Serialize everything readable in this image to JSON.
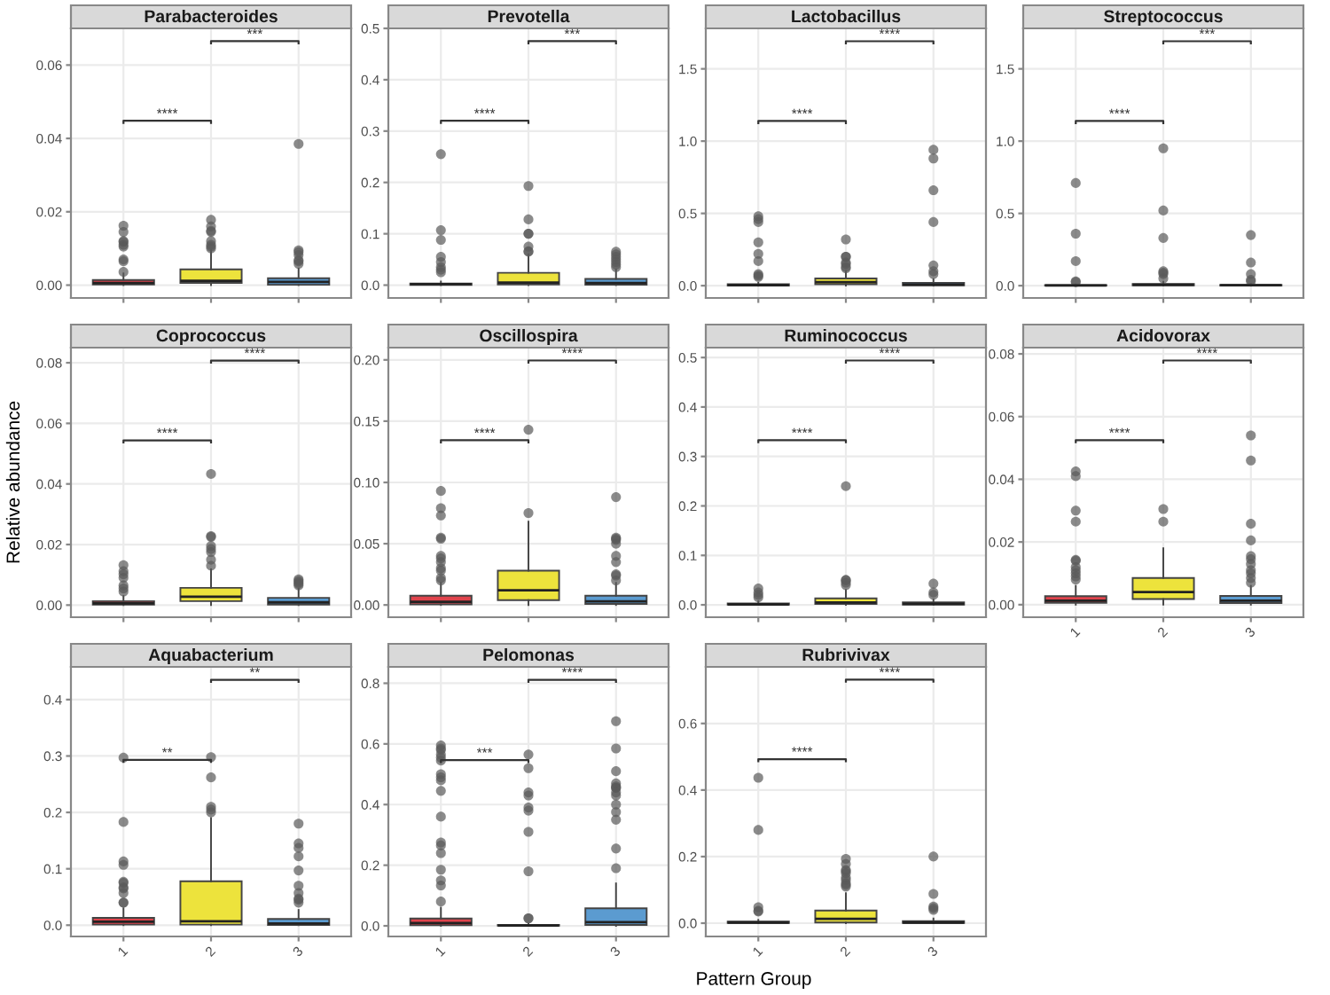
{
  "chart_data": [
    {
      "type": "box",
      "title": "Parabacteroides",
      "categories": [
        "1",
        "2",
        "3"
      ],
      "colors": [
        "#e0434c",
        "#ede33c",
        "#5b9bd0"
      ],
      "tick_labels": "y",
      "grid": true,
      "ylim": [
        -0.0035,
        0.07
      ],
      "yticks": [
        {
          "value": 0,
          "label": "0.00"
        },
        {
          "value": 0.02,
          "label": "0.02"
        },
        {
          "value": 0.04,
          "label": "0.04"
        },
        {
          "value": 0.06,
          "label": "0.06"
        }
      ],
      "annotations": [
        "****",
        "***"
      ],
      "boxes": [
        {
          "low": 0,
          "q1": 0.0002,
          "median": 0.0006,
          "q3": 0.0014,
          "high": 0.0032,
          "outliers": [
            0.0162,
            0.0145,
            0.012,
            0.0118,
            0.011,
            0.0105,
            0.007,
            0.0065,
            0.0036
          ]
        },
        {
          "low": 0,
          "q1": 0.0006,
          "median": 0.0012,
          "q3": 0.0043,
          "high": 0.0095,
          "outliers": [
            0.0178,
            0.016,
            0.0148,
            0.0145,
            0.012,
            0.011,
            0.0105,
            0.01
          ]
        },
        {
          "low": 0,
          "q1": 0.0001,
          "median": 0.0009,
          "q3": 0.0019,
          "high": 0.0045,
          "outliers": [
            0.0385,
            0.0095,
            0.009,
            0.0082,
            0.0068,
            0.0065,
            0.0058
          ]
        }
      ]
    },
    {
      "type": "box",
      "title": "Prevotella",
      "categories": [
        "1",
        "2",
        "3"
      ],
      "colors": [
        "#e0434c",
        "#ede33c",
        "#5b9bd0"
      ],
      "tick_labels": "y",
      "grid": true,
      "ylim": [
        -0.025,
        0.5
      ],
      "yticks": [
        {
          "value": 0,
          "label": "0.0"
        },
        {
          "value": 0.1,
          "label": "0.1"
        },
        {
          "value": 0.2,
          "label": "0.2"
        },
        {
          "value": 0.3,
          "label": "0.3"
        },
        {
          "value": 0.4,
          "label": "0.4"
        },
        {
          "value": 0.5,
          "label": "0.5"
        }
      ],
      "annotations": [
        "****",
        "***"
      ],
      "boxes": [
        {
          "low": 0,
          "q1": 0.0005,
          "median": 0.002,
          "q3": 0.003,
          "high": 0.007,
          "outliers": [
            0.255,
            0.107,
            0.088,
            0.055,
            0.045,
            0.035,
            0.03,
            0.025
          ]
        },
        {
          "low": 0,
          "q1": 0.0015,
          "median": 0.005,
          "q3": 0.024,
          "high": 0.06,
          "outliers": [
            0.193,
            0.128,
            0.1,
            0.1,
            0.075,
            0.066,
            0.065
          ]
        },
        {
          "low": 0,
          "q1": 0.0008,
          "median": 0.004,
          "q3": 0.012,
          "high": 0.03,
          "outliers": [
            0.065,
            0.06,
            0.055,
            0.05,
            0.045,
            0.04,
            0.035
          ]
        }
      ]
    },
    {
      "type": "box",
      "title": "Lactobacillus",
      "categories": [
        "1",
        "2",
        "3"
      ],
      "colors": [
        "#e0434c",
        "#ede33c",
        "#5b9bd0"
      ],
      "tick_labels": "y",
      "grid": true,
      "ylim": [
        -0.085,
        1.78
      ],
      "yticks": [
        {
          "value": 0,
          "label": "0.0"
        },
        {
          "value": 0.5,
          "label": "0.5"
        },
        {
          "value": 1.0,
          "label": "1.0"
        },
        {
          "value": 1.5,
          "label": "1.5"
        }
      ],
      "annotations": [
        "****",
        "****"
      ],
      "boxes": [
        {
          "low": 0,
          "q1": 0.001,
          "median": 0.004,
          "q3": 0.01,
          "high": 0.02,
          "outliers": [
            0.48,
            0.46,
            0.44,
            0.3,
            0.22,
            0.17,
            0.08,
            0.07,
            0.06
          ]
        },
        {
          "low": 0,
          "q1": 0.01,
          "median": 0.025,
          "q3": 0.05,
          "high": 0.1,
          "outliers": [
            0.32,
            0.2,
            0.2,
            0.16,
            0.15,
            0.13,
            0.12
          ]
        },
        {
          "low": 0,
          "q1": 0.003,
          "median": 0.008,
          "q3": 0.02,
          "high": 0.045,
          "outliers": [
            0.94,
            0.88,
            0.66,
            0.44,
            0.14,
            0.1,
            0.08
          ]
        }
      ]
    },
    {
      "type": "box",
      "title": "Streptococcus",
      "categories": [
        "1",
        "2",
        "3"
      ],
      "colors": [
        "#e0434c",
        "#ede33c",
        "#5b9bd0"
      ],
      "tick_labels": "y",
      "grid": true,
      "ylim": [
        -0.085,
        1.78
      ],
      "yticks": [
        {
          "value": 0,
          "label": "0.0"
        },
        {
          "value": 0.5,
          "label": "0.5"
        },
        {
          "value": 1.0,
          "label": "1.0"
        },
        {
          "value": 1.5,
          "label": "1.5"
        }
      ],
      "annotations": [
        "****",
        "***"
      ],
      "boxes": [
        {
          "low": 0,
          "q1": 0.0005,
          "median": 0.002,
          "q3": 0.004,
          "high": 0.009,
          "outliers": [
            0.71,
            0.36,
            0.17,
            0.03,
            0.025
          ]
        },
        {
          "low": 0,
          "q1": 0.002,
          "median": 0.006,
          "q3": 0.012,
          "high": 0.027,
          "outliers": [
            0.95,
            0.52,
            0.33,
            0.1,
            0.09,
            0.08,
            0.05
          ]
        },
        {
          "low": 0,
          "q1": 0.001,
          "median": 0.003,
          "q3": 0.006,
          "high": 0.012,
          "outliers": [
            0.35,
            0.16,
            0.08,
            0.04,
            0.03
          ]
        }
      ]
    },
    {
      "type": "box",
      "title": "Coprococcus",
      "ylabel": "Relative abundance",
      "categories": [
        "1",
        "2",
        "3"
      ],
      "colors": [
        "#e0434c",
        "#ede33c",
        "#5b9bd0"
      ],
      "tick_labels": "y",
      "grid": true,
      "ylim": [
        -0.004,
        0.085
      ],
      "yticks": [
        {
          "value": 0,
          "label": "0.00"
        },
        {
          "value": 0.02,
          "label": "0.02"
        },
        {
          "value": 0.04,
          "label": "0.04"
        },
        {
          "value": 0.06,
          "label": "0.06"
        },
        {
          "value": 0.08,
          "label": "0.08"
        }
      ],
      "annotations": [
        "****",
        "****"
      ],
      "boxes": [
        {
          "low": 0,
          "q1": 0.0002,
          "median": 0.0006,
          "q3": 0.0013,
          "high": 0.003,
          "outliers": [
            0.0132,
            0.0112,
            0.0102,
            0.009,
            0.0065,
            0.0055,
            0.0045
          ]
        },
        {
          "low": 0,
          "q1": 0.0013,
          "median": 0.0028,
          "q3": 0.0057,
          "high": 0.0118,
          "outliers": [
            0.0433,
            0.0228,
            0.0225,
            0.0195,
            0.0185,
            0.0175,
            0.015,
            0.013
          ]
        },
        {
          "low": 0,
          "q1": 0.0002,
          "median": 0.0009,
          "q3": 0.0024,
          "high": 0.0055,
          "outliers": [
            0.0085,
            0.008,
            0.0075,
            0.007,
            0.0065
          ]
        }
      ]
    },
    {
      "type": "box",
      "title": "Oscillospira",
      "categories": [
        "1",
        "2",
        "3"
      ],
      "colors": [
        "#e0434c",
        "#ede33c",
        "#5b9bd0"
      ],
      "tick_labels": "y",
      "grid": true,
      "ylim": [
        -0.01,
        0.21
      ],
      "yticks": [
        {
          "value": 0,
          "label": "0.00"
        },
        {
          "value": 0.05,
          "label": "0.05"
        },
        {
          "value": 0.1,
          "label": "0.10"
        },
        {
          "value": 0.15,
          "label": "0.15"
        },
        {
          "value": 0.2,
          "label": "0.20"
        }
      ],
      "annotations": [
        "****",
        "****"
      ],
      "boxes": [
        {
          "low": 0,
          "q1": 0.0005,
          "median": 0.0025,
          "q3": 0.0075,
          "high": 0.018,
          "outliers": [
            0.093,
            0.079,
            0.073,
            0.055,
            0.054,
            0.04,
            0.038,
            0.035,
            0.03,
            0.028,
            0.022,
            0.02
          ]
        },
        {
          "low": 0,
          "q1": 0.004,
          "median": 0.012,
          "q3": 0.028,
          "high": 0.068,
          "outliers": [
            0.143,
            0.075
          ]
        },
        {
          "low": 0,
          "q1": 0.0008,
          "median": 0.003,
          "q3": 0.0075,
          "high": 0.018,
          "outliers": [
            0.088,
            0.055,
            0.054,
            0.053,
            0.05,
            0.04,
            0.035,
            0.025,
            0.024,
            0.02
          ]
        }
      ]
    },
    {
      "type": "box",
      "title": "Ruminococcus",
      "categories": [
        "1",
        "2",
        "3"
      ],
      "colors": [
        "#e0434c",
        "#ede33c",
        "#5b9bd0"
      ],
      "tick_labels": "y",
      "grid": true,
      "ylim": [
        -0.025,
        0.52
      ],
      "yticks": [
        {
          "value": 0,
          "label": "0.0"
        },
        {
          "value": 0.1,
          "label": "0.1"
        },
        {
          "value": 0.2,
          "label": "0.2"
        },
        {
          "value": 0.3,
          "label": "0.3"
        },
        {
          "value": 0.4,
          "label": "0.4"
        },
        {
          "value": 0.5,
          "label": "0.5"
        }
      ],
      "annotations": [
        "****",
        "****"
      ],
      "boxes": [
        {
          "low": 0,
          "q1": 0.0003,
          "median": 0.001,
          "q3": 0.003,
          "high": 0.007,
          "outliers": [
            0.033,
            0.025,
            0.02,
            0.015
          ]
        },
        {
          "low": 0,
          "q1": 0.002,
          "median": 0.005,
          "q3": 0.013,
          "high": 0.03,
          "outliers": [
            0.24,
            0.05,
            0.05,
            0.045,
            0.04
          ]
        },
        {
          "low": 0,
          "q1": 0.0005,
          "median": 0.002,
          "q3": 0.005,
          "high": 0.011,
          "outliers": [
            0.043,
            0.025,
            0.02
          ]
        }
      ]
    },
    {
      "type": "box",
      "title": "Acidovorax",
      "categories": [
        "1",
        "2",
        "3"
      ],
      "colors": [
        "#e0434c",
        "#ede33c",
        "#5b9bd0"
      ],
      "grid": true,
      "ylim": [
        -0.004,
        0.082
      ],
      "yticks": [
        {
          "value": 0,
          "label": "0.00"
        },
        {
          "value": 0.02,
          "label": "0.02"
        },
        {
          "value": 0.04,
          "label": "0.04"
        },
        {
          "value": 0.06,
          "label": "0.06"
        },
        {
          "value": 0.08,
          "label": "0.08"
        }
      ],
      "annotations": [
        "****",
        "****"
      ],
      "boxes": [
        {
          "low": 0,
          "q1": 0.0006,
          "median": 0.0013,
          "q3": 0.0027,
          "high": 0.006,
          "outliers": [
            0.0425,
            0.041,
            0.03,
            0.0265,
            0.0143,
            0.014,
            0.012,
            0.011,
            0.01,
            0.009,
            0.008
          ]
        },
        {
          "low": 0,
          "q1": 0.0018,
          "median": 0.004,
          "q3": 0.0085,
          "high": 0.018,
          "outliers": [
            0.0305,
            0.0265
          ]
        },
        {
          "low": 0,
          "q1": 0.0005,
          "median": 0.0013,
          "q3": 0.0028,
          "high": 0.006,
          "outliers": [
            0.054,
            0.046,
            0.0258,
            0.0205,
            0.0155,
            0.0145,
            0.013,
            0.011,
            0.01,
            0.0085,
            0.007
          ]
        }
      ]
    },
    {
      "type": "box",
      "title": "Aquabacterium",
      "categories": [
        "1",
        "2",
        "3"
      ],
      "colors": [
        "#e0434c",
        "#ede33c",
        "#5b9bd0"
      ],
      "grid": true,
      "ylim": [
        -0.02,
        0.458
      ],
      "yticks": [
        {
          "value": 0,
          "label": "0.0"
        },
        {
          "value": 0.1,
          "label": "0.1"
        },
        {
          "value": 0.2,
          "label": "0.2"
        },
        {
          "value": 0.3,
          "label": "0.3"
        },
        {
          "value": 0.4,
          "label": "0.4"
        }
      ],
      "annotations": [
        "**",
        "**"
      ],
      "boxes": [
        {
          "low": 0,
          "q1": 0.001,
          "median": 0.006,
          "q3": 0.013,
          "high": 0.03,
          "outliers": [
            0.297,
            0.183,
            0.113,
            0.107,
            0.077,
            0.075,
            0.067,
            0.065,
            0.057,
            0.04,
            0.04
          ]
        },
        {
          "low": 0,
          "q1": 0.001,
          "median": 0.007,
          "q3": 0.078,
          "high": 0.19,
          "outliers": [
            0.298,
            0.262,
            0.21,
            0.205,
            0.2
          ]
        },
        {
          "low": 0,
          "q1": 0.0005,
          "median": 0.003,
          "q3": 0.011,
          "high": 0.027,
          "outliers": [
            0.18,
            0.145,
            0.137,
            0.122,
            0.097,
            0.07,
            0.057,
            0.047,
            0.045,
            0.04
          ]
        }
      ]
    },
    {
      "type": "box",
      "title": "Pelomonas",
      "xlabel": "Pattern Group",
      "categories": [
        "1",
        "2",
        "3"
      ],
      "colors": [
        "#e0434c",
        "#ede33c",
        "#5b9bd0"
      ],
      "grid": true,
      "ylim": [
        -0.035,
        0.854
      ],
      "yticks": [
        {
          "value": 0,
          "label": "0.0"
        },
        {
          "value": 0.2,
          "label": "0.2"
        },
        {
          "value": 0.4,
          "label": "0.4"
        },
        {
          "value": 0.6,
          "label": "0.6"
        },
        {
          "value": 0.8,
          "label": "0.8"
        }
      ],
      "annotations": [
        "***",
        "****"
      ],
      "boxes": [
        {
          "low": 0,
          "q1": 0.002,
          "median": 0.009,
          "q3": 0.024,
          "high": 0.06,
          "outliers": [
            0.595,
            0.585,
            0.58,
            0.565,
            0.555,
            0.545,
            0.5,
            0.49,
            0.48,
            0.445,
            0.36,
            0.275,
            0.265,
            0.24,
            0.185,
            0.15,
            0.133,
            0.08
          ]
        },
        {
          "low": 0,
          "q1": 0.0005,
          "median": 0.001,
          "q3": 0.003,
          "high": 0.007,
          "outliers": [
            0.565,
            0.52,
            0.44,
            0.43,
            0.39,
            0.38,
            0.31,
            0.18,
            0.025,
            0.025
          ]
        },
        {
          "low": 0,
          "q1": 0.003,
          "median": 0.012,
          "q3": 0.058,
          "high": 0.14,
          "outliers": [
            0.675,
            0.585,
            0.51,
            0.47,
            0.46,
            0.455,
            0.455,
            0.44,
            0.43,
            0.4,
            0.375,
            0.35,
            0.255,
            0.19
          ]
        }
      ]
    },
    {
      "type": "box",
      "title": "Rubrivivax",
      "categories": [
        "1",
        "2",
        "3"
      ],
      "colors": [
        "#e0434c",
        "#ede33c",
        "#5b9bd0"
      ],
      "grid": true,
      "ylim": [
        -0.04,
        0.77
      ],
      "yticks": [
        {
          "value": 0,
          "label": "0.0"
        },
        {
          "value": 0.2,
          "label": "0.2"
        },
        {
          "value": 0.4,
          "label": "0.4"
        },
        {
          "value": 0.6,
          "label": "0.6"
        }
      ],
      "annotations": [
        "****",
        "****"
      ],
      "boxes": [
        {
          "low": 0,
          "q1": 0.0005,
          "median": 0.002,
          "q3": 0.005,
          "high": 0.01,
          "outliers": [
            0.437,
            0.28,
            0.048,
            0.037,
            0.035
          ]
        },
        {
          "low": 0,
          "q1": 0.002,
          "median": 0.013,
          "q3": 0.038,
          "high": 0.09,
          "outliers": [
            0.193,
            0.178,
            0.16,
            0.156,
            0.15,
            0.137,
            0.13,
            0.12,
            0.115,
            0.11
          ]
        },
        {
          "low": 0,
          "q1": 0.0005,
          "median": 0.002,
          "q3": 0.006,
          "high": 0.014,
          "outliers": [
            0.2,
            0.088,
            0.05,
            0.045,
            0.04
          ]
        }
      ]
    }
  ]
}
